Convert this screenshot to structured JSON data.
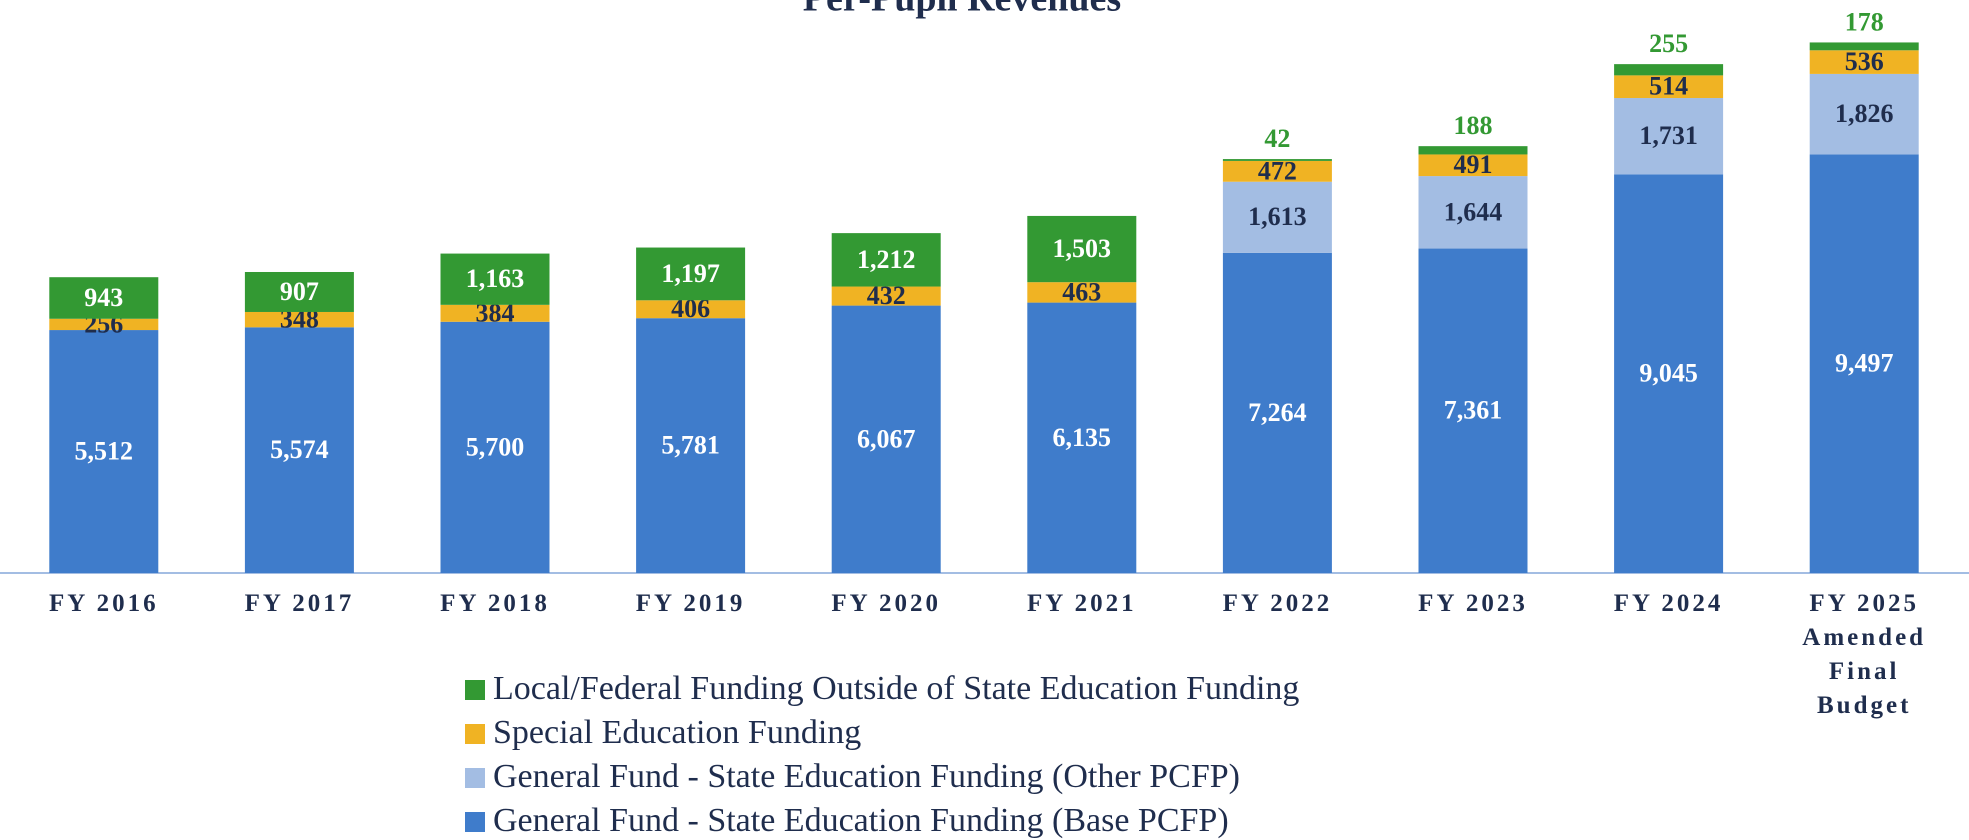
{
  "chart_data": {
    "type": "stacked_bar",
    "title": "Per-Pupil Revenues",
    "categories": [
      "FY 2016",
      "FY 2017",
      "FY 2018",
      "FY 2019",
      "FY 2020",
      "FY 2021",
      "FY 2022",
      "FY 2023",
      "FY 2024",
      "FY 2025 Amended Final Budget"
    ],
    "series": [
      {
        "name": "General Fund - State Education Funding (Base PCFP)",
        "color": "#3f7ccb",
        "values": [
          5512,
          5574,
          5700,
          5781,
          6067,
          6135,
          7264,
          7361,
          9045,
          9497
        ]
      },
      {
        "name": "General Fund - State Education Funding (Other PCFP)",
        "color": "#a3bde3",
        "values": [
          null,
          null,
          null,
          null,
          null,
          null,
          1613,
          1644,
          1731,
          1826
        ]
      },
      {
        "name": "Special Education Funding",
        "color": "#f0b323",
        "values": [
          256,
          348,
          384,
          406,
          432,
          463,
          472,
          491,
          514,
          536
        ]
      },
      {
        "name": "Local/Federal Funding Outside of State Education Funding",
        "color": "#339933",
        "values": [
          943,
          907,
          1163,
          1197,
          1212,
          1503,
          42,
          188,
          255,
          178
        ]
      }
    ],
    "value_labels": [
      [
        "5,512",
        "5,574",
        "5,700",
        "5,781",
        "6,067",
        "6,135",
        "7,264",
        "7,361",
        "9,045",
        "9,497"
      ],
      [
        null,
        null,
        null,
        null,
        null,
        null,
        "1,613",
        "1,644",
        "1,731",
        "1,826"
      ],
      [
        "256",
        "348",
        "384",
        "406",
        "432",
        "463",
        "472",
        "491",
        "514",
        "536"
      ],
      [
        "943",
        "907",
        "1,163",
        "1,197",
        "1,212",
        "1,503",
        "42",
        "188",
        "255",
        "178"
      ]
    ],
    "ylim": [
      0,
      13000
    ],
    "legend": "bottom"
  }
}
